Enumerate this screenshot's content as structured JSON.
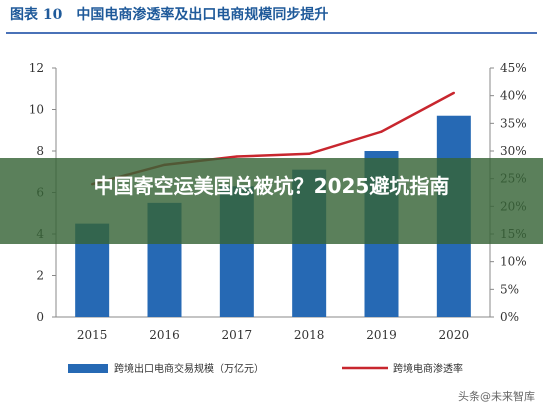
{
  "figure_title": "图表 10　中国电商渗透率及出口电商规模同步提升",
  "overlay_headline": "中国寄空运美国总被坑？2025避坑指南",
  "watermark": "头条@未来智库",
  "colors": {
    "bar": "#2669b4",
    "line": "#c8262e",
    "title": "#1f5a9a",
    "overlay": "#376437"
  },
  "chart_data": {
    "type": "bar",
    "categories": [
      "2015",
      "2016",
      "2017",
      "2018",
      "2019",
      "2020"
    ],
    "series": [
      {
        "name": "跨境出口电商交易规模（万亿元）",
        "type": "bar",
        "axis": "left",
        "values": [
          4.5,
          5.5,
          6.3,
          7.1,
          8.0,
          9.7
        ]
      },
      {
        "name": "跨境电商渗透率",
        "type": "line",
        "axis": "right",
        "values": [
          24.0,
          27.5,
          29.0,
          29.5,
          33.5,
          40.5
        ]
      }
    ],
    "y_left": {
      "ylim": [
        0,
        12
      ],
      "ticks": [
        "0",
        "2",
        "4",
        "6",
        "8",
        "10",
        "12"
      ]
    },
    "y_right": {
      "ylim": [
        0,
        45
      ],
      "ticks": [
        "0%",
        "5%",
        "10%",
        "15%",
        "20%",
        "25%",
        "30%",
        "35%",
        "40%",
        "45%"
      ]
    },
    "legend": {
      "position": "bottom",
      "entries": [
        "跨境出口电商交易规模（万亿元）",
        "跨境电商渗透率"
      ]
    },
    "grid": false
  }
}
